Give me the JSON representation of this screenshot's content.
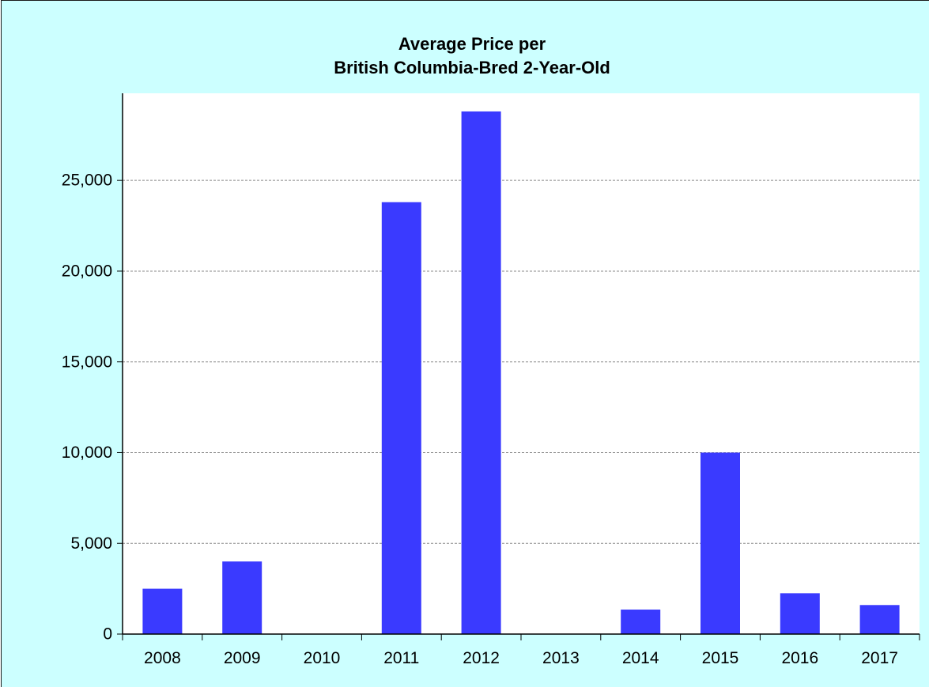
{
  "chart_data": {
    "type": "bar",
    "title": [
      "Average Price per",
      "British Columbia-Bred 2-Year-Old"
    ],
    "xlabel": "",
    "ylabel": "",
    "categories": [
      "2008",
      "2009",
      "2010",
      "2011",
      "2012",
      "2013",
      "2014",
      "2015",
      "2016",
      "2017"
    ],
    "values": [
      2500,
      4000,
      0,
      23800,
      28800,
      0,
      1350,
      10000,
      2250,
      1600
    ],
    "ylim": [
      0,
      29800
    ],
    "yticks": [
      0,
      5000,
      10000,
      15000,
      20000,
      25000
    ],
    "ytick_labels": [
      "0",
      "5,000",
      "10,000",
      "15,000",
      "20,000",
      "25,000"
    ],
    "grid": true,
    "colors": {
      "background": "#ccffff",
      "plot_area": "#ffffff",
      "bar": "#3a3aff",
      "grid": "#888888",
      "axis": "#000000"
    }
  }
}
